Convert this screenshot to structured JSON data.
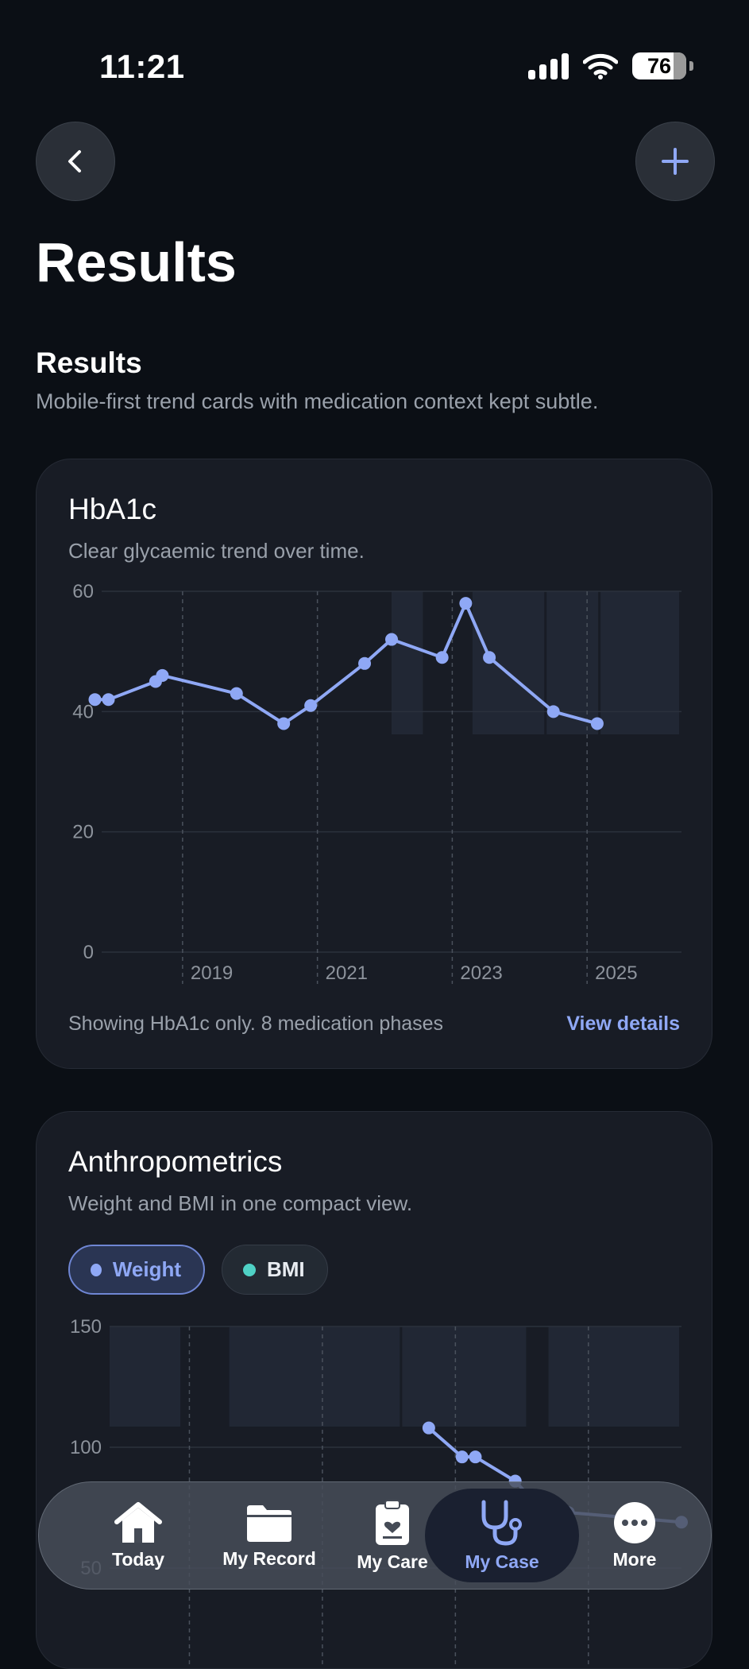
{
  "status": {
    "time": "11:21",
    "battery": "76"
  },
  "header": {
    "title": "Results"
  },
  "section": {
    "title": "Results",
    "subtitle": "Mobile-first trend cards with medication context kept subtle."
  },
  "hba1c_card": {
    "title": "HbA1c",
    "subtitle": "Clear glycaemic trend over time.",
    "footer_note": "Showing HbA1c only. 8 medication phases",
    "view_details": "View details"
  },
  "anthro_card": {
    "title": "Anthropometrics",
    "subtitle": "Weight and BMI in one compact view.",
    "toggles": [
      {
        "label": "Weight",
        "color": "#8fa8f5",
        "selected": true
      },
      {
        "label": "BMI",
        "color": "#4fd1c5",
        "selected": false
      }
    ]
  },
  "tabbar": {
    "items": [
      {
        "label": "Today",
        "icon": "house-icon"
      },
      {
        "label": "My Record",
        "icon": "folder-icon"
      },
      {
        "label": "My Care",
        "icon": "clipboard-heart-icon"
      },
      {
        "label": "My Case",
        "icon": "stethoscope-icon",
        "active": true
      },
      {
        "label": "More",
        "icon": "ellipsis-circle-icon"
      }
    ]
  },
  "colors": {
    "accent": "#8fa8f5",
    "bmi": "#4fd1c5",
    "background": "#0b0f15",
    "card": "#181c25"
  },
  "chart_data": [
    {
      "type": "line",
      "name": "HbA1c",
      "xlim": [
        2017.7,
        2026.3
      ],
      "ylim": [
        0,
        60
      ],
      "yticks": [
        0,
        20,
        40,
        60
      ],
      "xticks": [
        2019,
        2021,
        2023,
        2025
      ],
      "grid": true,
      "medication_phases": [
        [
          2022.0,
          2022.5
        ],
        [
          2023.2,
          2024.3
        ],
        [
          2024.3,
          2025.1
        ],
        [
          2025.1,
          2026.3
        ]
      ],
      "x": [
        2017.6,
        2017.8,
        2018.5,
        2018.6,
        2019.7,
        2020.4,
        2020.8,
        2021.6,
        2022.0,
        2022.75,
        2023.1,
        2023.45,
        2024.4,
        2025.05
      ],
      "values": [
        42,
        42,
        45,
        46,
        43,
        38,
        41,
        48,
        52,
        49,
        58,
        49,
        40,
        38
      ]
    },
    {
      "type": "line",
      "name": "Weight",
      "ylim": [
        50,
        150
      ],
      "yticks": [
        50,
        100,
        150
      ],
      "grid": true,
      "medication_phases": [
        [
          2017.7,
          2018.8
        ],
        [
          2019.5,
          2022.1
        ],
        [
          2022.1,
          2024.0
        ],
        [
          2024.3,
          2026.3
        ]
      ],
      "x": [
        2022.5,
        2023.0,
        2023.2,
        2023.8,
        2024.0,
        2024.2,
        2024.4,
        2024.6,
        2026.3
      ],
      "values": [
        108,
        96,
        96,
        86,
        80,
        76,
        74,
        73,
        69
      ]
    }
  ]
}
